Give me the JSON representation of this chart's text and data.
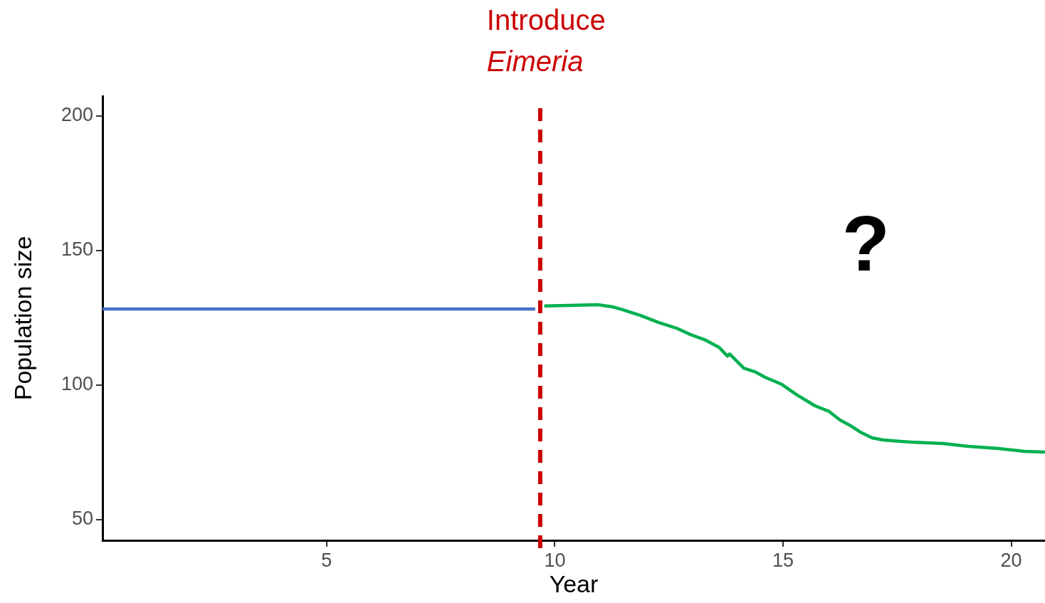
{
  "chart_data": {
    "type": "line",
    "xlabel": "Year",
    "ylabel": "Population size",
    "xlim": [
      0.09,
      20.74
    ],
    "xticks": [
      5,
      10,
      15,
      20
    ],
    "ylim": [
      42.3,
      207.4
    ],
    "yticks": [
      50,
      100,
      150,
      200
    ],
    "grid": false,
    "legend": false,
    "marker": "none",
    "line_style": "solid",
    "series": [
      {
        "color": "#4472c4",
        "x": [
          0.09,
          9.57
        ],
        "values": [
          128.3,
          128.3
        ]
      },
      {
        "color": "#00b050",
        "x": [
          9.77,
          10.32,
          10.94,
          11.26,
          11.49,
          11.88,
          12.27,
          12.66,
          12.97,
          13.28,
          13.6,
          13.78,
          13.83,
          14.14,
          14.38,
          14.61,
          14.97,
          15.31,
          15.7,
          16.01,
          16.25,
          16.48,
          16.72,
          16.95,
          17.19,
          17.81,
          18.51,
          19.06,
          19.68,
          20.3,
          20.74
        ],
        "values": [
          129.4,
          129.6,
          129.9,
          129.1,
          128.0,
          125.9,
          123.3,
          121.2,
          118.8,
          116.9,
          114.0,
          110.8,
          111.6,
          106.3,
          105.0,
          102.9,
          100.3,
          96.3,
          92.3,
          90.2,
          87.0,
          84.9,
          82.3,
          80.4,
          79.6,
          78.8,
          78.3,
          77.2,
          76.5,
          75.4,
          75.1
        ]
      }
    ],
    "ref_lines": [
      {
        "axis": "x",
        "value": 9.68,
        "label": "Introduce\nEimeria",
        "color": "#cc0000",
        "line_style": "dashed"
      }
    ],
    "annotations": [
      "?"
    ]
  }
}
